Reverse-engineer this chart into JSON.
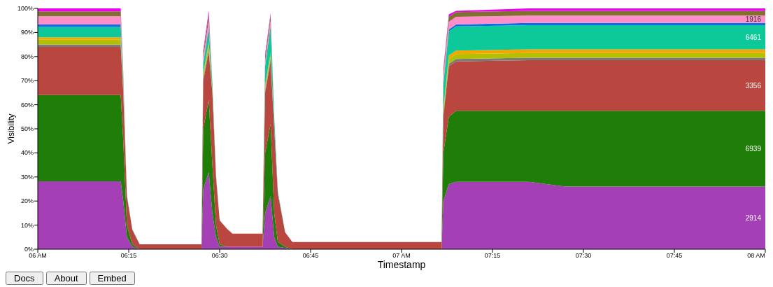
{
  "chart_data": {
    "type": "area",
    "stacked": true,
    "xlabel": "Timestamp",
    "ylabel": "Visibility",
    "x": [
      6.0,
      6.228,
      6.235,
      6.245,
      6.26,
      6.28,
      6.45,
      6.455,
      6.47,
      6.48,
      6.49,
      6.5,
      6.52,
      6.535,
      6.618,
      6.625,
      6.64,
      6.65,
      6.66,
      6.68,
      6.7,
      7.11,
      7.115,
      7.13,
      7.15,
      7.35,
      7.45,
      8.0
    ],
    "series": [
      {
        "name": "2914",
        "color": "#a43fb6",
        "values": [
          28.2,
          28.2,
          20,
          5,
          1,
          0,
          0,
          25,
          32,
          15,
          5,
          1,
          1,
          1,
          1,
          15,
          22,
          5,
          1,
          0.5,
          0,
          0,
          20,
          27,
          28,
          28,
          26,
          26
        ]
      },
      {
        "name": "6939",
        "color": "#1f7e07",
        "values": [
          35.8,
          35.8,
          25,
          5,
          1,
          0,
          0,
          25,
          30,
          20,
          5,
          1,
          0,
          0,
          0,
          25,
          30,
          10,
          2,
          0.5,
          0,
          0,
          20,
          28,
          29.5,
          29.5,
          31.5,
          31.5
        ]
      },
      {
        "name": "3356",
        "color": "#b9463f",
        "values": [
          20,
          20,
          20,
          12,
          6,
          2,
          2,
          20,
          20,
          30,
          20,
          10,
          7.5,
          5.5,
          5.5,
          25,
          26,
          35,
          20,
          6,
          3,
          3,
          15,
          21,
          20.5,
          21,
          21,
          21
        ]
      },
      {
        "color": "#7a7a7a",
        "values": [
          1,
          1,
          1,
          0,
          0,
          0,
          0,
          1,
          1,
          0,
          0,
          0,
          0,
          0,
          0,
          1,
          1,
          0,
          0,
          0,
          0,
          0,
          1,
          1,
          1,
          1,
          1,
          1
        ]
      },
      {
        "color": "#b2c000",
        "values": [
          2,
          2,
          1,
          0,
          0,
          0,
          0,
          1,
          2,
          1,
          0,
          0,
          0,
          0,
          0,
          1,
          1,
          0,
          0,
          0,
          0,
          0,
          1.5,
          2,
          2,
          2,
          2,
          2
        ]
      },
      {
        "color": "#f5a500",
        "values": [
          1,
          1,
          0.5,
          0,
          0,
          0,
          0,
          1,
          1,
          0,
          0,
          0,
          0,
          0,
          0,
          1,
          1.5,
          0,
          0,
          0,
          0,
          0,
          1,
          1.5,
          1.5,
          1.5,
          1.5,
          1.5
        ]
      },
      {
        "name": "6461",
        "color": "#0dc899",
        "values": [
          4.3,
          4.3,
          3,
          0.5,
          0.3,
          0,
          0,
          4,
          5,
          3,
          1,
          0,
          0,
          0,
          0,
          8,
          11,
          5,
          1,
          0,
          0,
          0,
          10,
          10,
          10,
          10,
          10,
          10
        ]
      },
      {
        "color": "#0a6ee6",
        "values": [
          1,
          1,
          0.5,
          0,
          0,
          0,
          0,
          0.5,
          1,
          0,
          0,
          0,
          0,
          0,
          0,
          0,
          0.5,
          0,
          0,
          0,
          0,
          0,
          0.5,
          0.8,
          0.8,
          1,
          1,
          1
        ]
      },
      {
        "name": "1916",
        "color": "#ff8ec9",
        "values": [
          3.4,
          3.4,
          1,
          0,
          0,
          0,
          0,
          2,
          3,
          0,
          0,
          0,
          0,
          0,
          0,
          2,
          2,
          0,
          0,
          0,
          0,
          0,
          3,
          3.2,
          3.2,
          3,
          3,
          3
        ]
      },
      {
        "color": "#81702f",
        "values": [
          2.1,
          2.1,
          1,
          0,
          0,
          0,
          0,
          2,
          2.5,
          0,
          0,
          0,
          0,
          0,
          0,
          2,
          2,
          0,
          0,
          0,
          0,
          0,
          2,
          2,
          2,
          2,
          2,
          2
        ]
      },
      {
        "color": "#ee00ee",
        "values": [
          1.2,
          1.2,
          0.5,
          0,
          0,
          0,
          0,
          1,
          1.5,
          0,
          0,
          0,
          0,
          0,
          0,
          1,
          1,
          0,
          0,
          0,
          0,
          0,
          1,
          1,
          0.5,
          1,
          1,
          1
        ]
      }
    ],
    "xlim": [
      6,
      8
    ],
    "xticks": [
      {
        "value": 6,
        "label": "06 AM"
      },
      {
        "value": 6.25,
        "label": "06:15"
      },
      {
        "value": 6.5,
        "label": "06:30"
      },
      {
        "value": 6.75,
        "label": "06:45"
      },
      {
        "value": 7,
        "label": "07 AM"
      },
      {
        "value": 7.25,
        "label": "07:15"
      },
      {
        "value": 7.5,
        "label": "07:30"
      },
      {
        "value": 7.75,
        "label": "07:45"
      },
      {
        "value": 8,
        "label": "08 AM"
      }
    ],
    "ylim": [
      0,
      100
    ],
    "yticks": [
      {
        "value": 0,
        "label": "0%"
      },
      {
        "value": 10,
        "label": "10%"
      },
      {
        "value": 20,
        "label": "20%"
      },
      {
        "value": 30,
        "label": "30%"
      },
      {
        "value": 40,
        "label": "40%"
      },
      {
        "value": 50,
        "label": "50%"
      },
      {
        "value": 60,
        "label": "60%"
      },
      {
        "value": 70,
        "label": "70%"
      },
      {
        "value": 80,
        "label": "80%"
      },
      {
        "value": 90,
        "label": "90%"
      },
      {
        "value": 100,
        "label": "100%"
      }
    ],
    "grid": false,
    "annotations": [
      "Docs",
      "About",
      "Embed"
    ]
  }
}
